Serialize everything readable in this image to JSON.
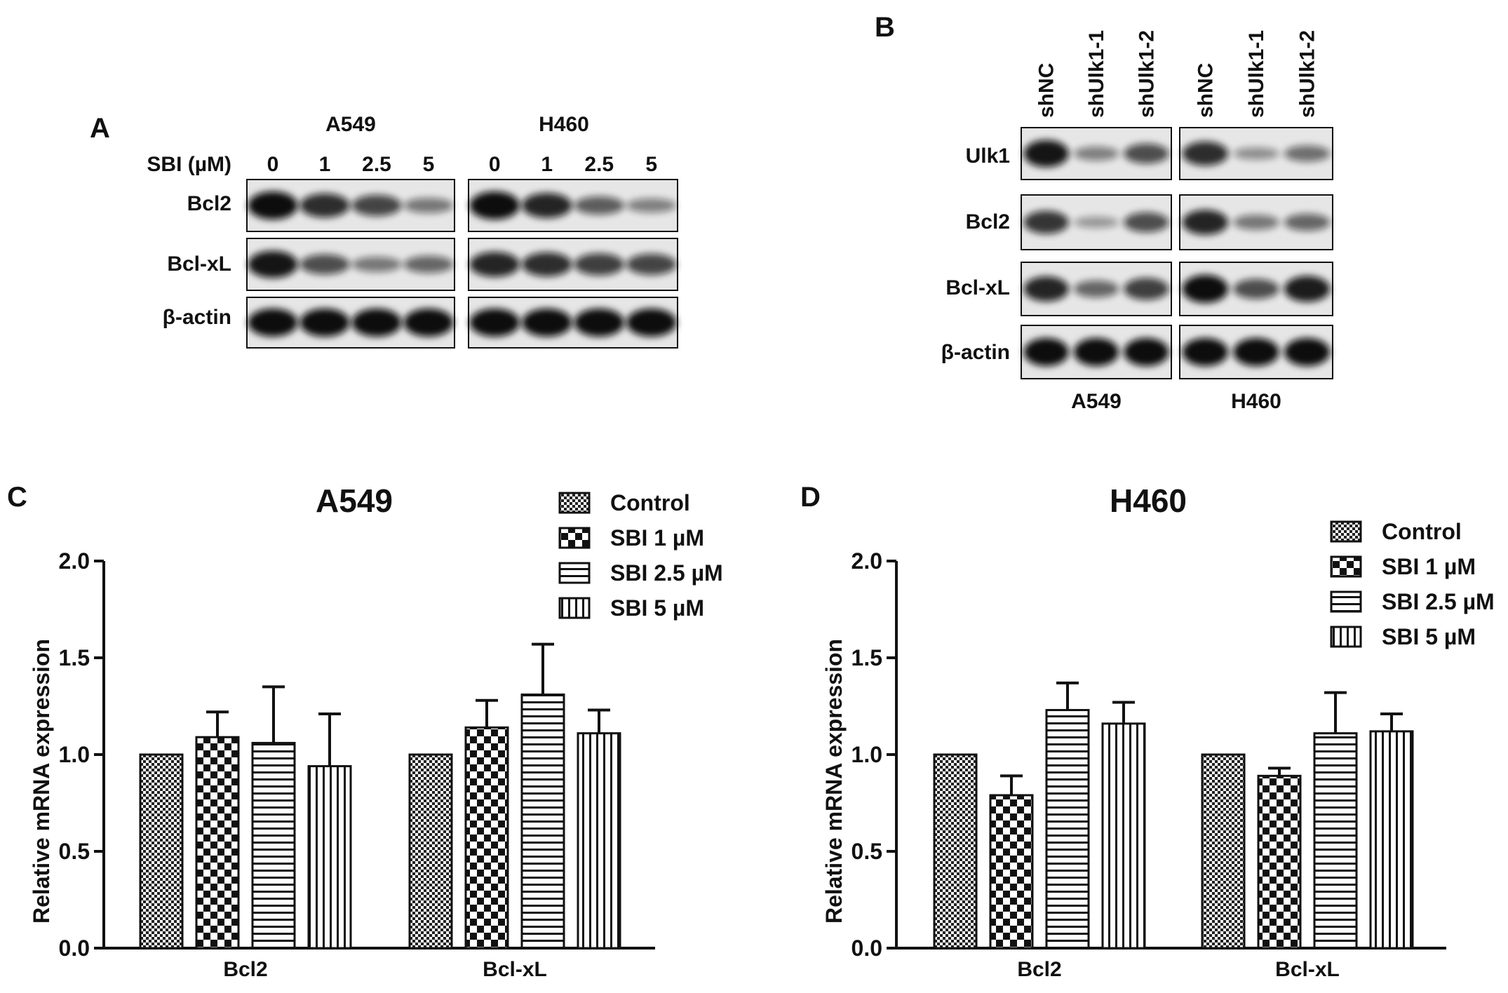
{
  "panelA": {
    "letter": "A",
    "treatment_label": "SBI (µM)",
    "groups": [
      {
        "name": "A549",
        "doses": [
          "0",
          "1",
          "2.5",
          "5"
        ]
      },
      {
        "name": "H460",
        "doses": [
          "0",
          "1",
          "2.5",
          "5"
        ]
      }
    ],
    "rows": [
      "Bcl2",
      "Bcl-xL",
      "β-actin"
    ],
    "band_intensity": {
      "Bcl2": [
        [
          1.0,
          0.8,
          0.65,
          0.35
        ],
        [
          1.0,
          0.85,
          0.5,
          0.3
        ]
      ],
      "Bcl-xL": [
        [
          0.95,
          0.6,
          0.35,
          0.45
        ],
        [
          0.85,
          0.8,
          0.7,
          0.65
        ]
      ],
      "β-actin": [
        [
          1.0,
          1.0,
          1.0,
          1.0
        ],
        [
          1.0,
          1.0,
          1.0,
          1.0
        ]
      ]
    }
  },
  "panelB": {
    "letter": "B",
    "groups": [
      {
        "name": "A549",
        "lanes": [
          "shNC",
          "shUlk1-1",
          "shUlk1-2"
        ]
      },
      {
        "name": "H460",
        "lanes": [
          "shNC",
          "shUlk1-1",
          "shUlk1-2"
        ]
      }
    ],
    "rows": [
      "Ulk1",
      "Bcl2",
      "Bcl-xL",
      "β-actin"
    ],
    "band_intensity": {
      "Ulk1": [
        [
          0.95,
          0.3,
          0.6
        ],
        [
          0.8,
          0.2,
          0.4
        ]
      ],
      "Bcl2": [
        [
          0.75,
          0.15,
          0.6
        ],
        [
          0.85,
          0.35,
          0.45
        ]
      ],
      "Bcl-xL": [
        [
          0.85,
          0.45,
          0.7
        ],
        [
          1.0,
          0.6,
          0.9
        ]
      ],
      "β-actin": [
        [
          1.0,
          1.0,
          1.0
        ],
        [
          1.0,
          1.0,
          1.0
        ]
      ]
    }
  },
  "chart_data": [
    {
      "panel": "C",
      "type": "bar",
      "title": "A549",
      "ylabel": "Relative mRNA expression",
      "xlabel": "",
      "ylim": [
        0,
        2.0
      ],
      "yticks": [
        "0.0",
        "0.5",
        "1.0",
        "1.5",
        "2.0"
      ],
      "categories": [
        "Bcl2",
        "Bcl-xL"
      ],
      "legend_position": "top-right",
      "series": [
        {
          "name": "Control",
          "pattern": "fine-check",
          "values": [
            1.0,
            1.0
          ],
          "errors": [
            0,
            0
          ]
        },
        {
          "name": "SBI 1 µM",
          "pattern": "checker",
          "values": [
            1.09,
            1.14
          ],
          "errors": [
            0.13,
            0.14
          ]
        },
        {
          "name": "SBI 2.5 µM",
          "pattern": "horizontal",
          "values": [
            1.06,
            1.31
          ],
          "errors": [
            0.29,
            0.26
          ]
        },
        {
          "name": "SBI 5 µM",
          "pattern": "vertical",
          "values": [
            0.94,
            1.11
          ],
          "errors": [
            0.27,
            0.12
          ]
        }
      ]
    },
    {
      "panel": "D",
      "type": "bar",
      "title": "H460",
      "ylabel": "Relative mRNA expression",
      "xlabel": "",
      "ylim": [
        0,
        2.0
      ],
      "yticks": [
        "0.0",
        "0.5",
        "1.0",
        "1.5",
        "2.0"
      ],
      "categories": [
        "Bcl2",
        "Bcl-xL"
      ],
      "legend_position": "top-right",
      "series": [
        {
          "name": "Control",
          "pattern": "fine-check",
          "values": [
            1.0,
            1.0
          ],
          "errors": [
            0,
            0
          ]
        },
        {
          "name": "SBI 1 µM",
          "pattern": "checker",
          "values": [
            0.79,
            0.89
          ],
          "errors": [
            0.1,
            0.04
          ]
        },
        {
          "name": "SBI 2.5 µM",
          "pattern": "horizontal",
          "values": [
            1.23,
            1.11
          ],
          "errors": [
            0.14,
            0.21
          ]
        },
        {
          "name": "SBI 5 µM",
          "pattern": "vertical",
          "values": [
            1.16,
            1.12
          ],
          "errors": [
            0.11,
            0.09
          ]
        }
      ]
    }
  ]
}
